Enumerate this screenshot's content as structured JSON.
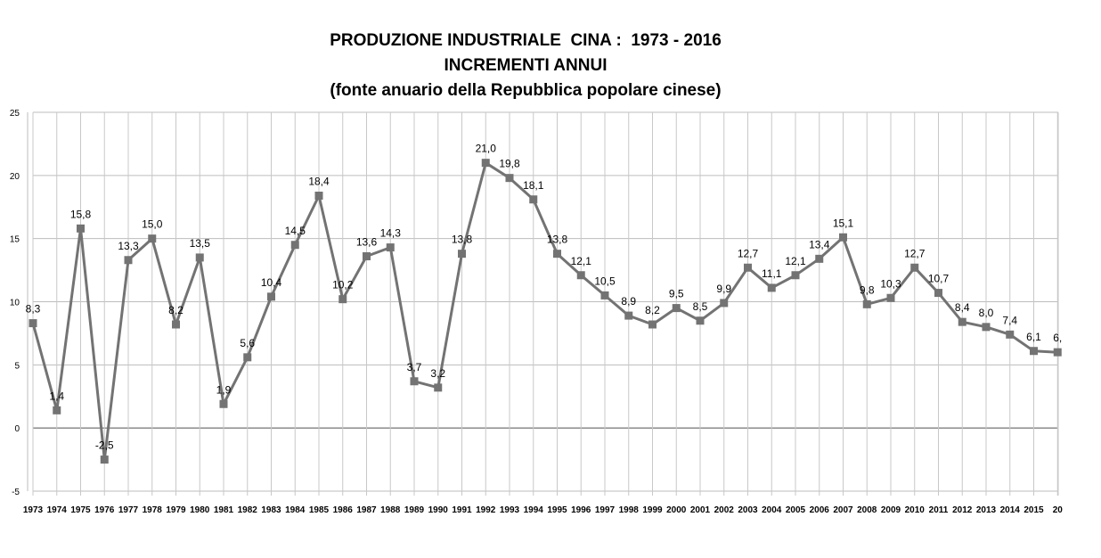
{
  "chart_data": {
    "type": "line",
    "title": "PRODUZIONE INDUSTRIALE  CINA :  1973 - 2016",
    "subtitle": "INCREMENTI ANNUI",
    "source_note": "(fonte anuario della Repubblica popolare cinese)",
    "xlabel": "",
    "ylabel": "",
    "ylim": [
      -5,
      25
    ],
    "yticks": [
      "-5",
      "0",
      "5",
      "10",
      "15",
      "20",
      "25"
    ],
    "grid": true,
    "legend": "none",
    "line_color": "#737373",
    "categories": [
      "1973",
      "1974",
      "1975",
      "1976",
      "1977",
      "1978",
      "1979",
      "1980",
      "1981",
      "1982",
      "1983",
      "1984",
      "1985",
      "1986",
      "1987",
      "1988",
      "1989",
      "1990",
      "1991",
      "1992",
      "1993",
      "1994",
      "1995",
      "1996",
      "1997",
      "1998",
      "1999",
      "2000",
      "2001",
      "2002",
      "2003",
      "2004",
      "2005",
      "2006",
      "2007",
      "2008",
      "2009",
      "2010",
      "2011",
      "2012",
      "2013",
      "2014",
      "2015",
      "20"
    ],
    "values": [
      8.3,
      1.4,
      15.8,
      -2.5,
      13.3,
      15.0,
      8.2,
      13.5,
      1.9,
      5.6,
      10.4,
      14.5,
      18.4,
      10.2,
      13.6,
      14.3,
      3.7,
      3.2,
      13.8,
      21.0,
      19.8,
      18.1,
      13.8,
      12.1,
      10.5,
      8.9,
      8.2,
      9.5,
      8.5,
      9.9,
      12.7,
      11.1,
      12.1,
      13.4,
      15.1,
      9.8,
      10.3,
      12.7,
      10.7,
      8.4,
      8.0,
      7.4,
      6.1,
      6.0
    ],
    "data_labels": [
      "8,3",
      "1,4",
      "15,8",
      "-2,5",
      "13,3",
      "15,0",
      "8,2",
      "13,5",
      "1,9",
      "5,6",
      "10,4",
      "14,5",
      "18,4",
      "10,2",
      "13,6",
      "14,3",
      "3,7",
      "3,2",
      "13,8",
      "21,0",
      "19,8",
      "18,1",
      "13,8",
      "12,1",
      "10,5",
      "8,9",
      "8,2",
      "9,5",
      "8,5",
      "9,9",
      "12,7",
      "11,1",
      "12,1",
      "13,4",
      "15,1",
      "9,8",
      "10,3",
      "12,7",
      "10,7",
      "8,4",
      "8,0",
      "7,4",
      "6,1",
      "6,"
    ]
  }
}
